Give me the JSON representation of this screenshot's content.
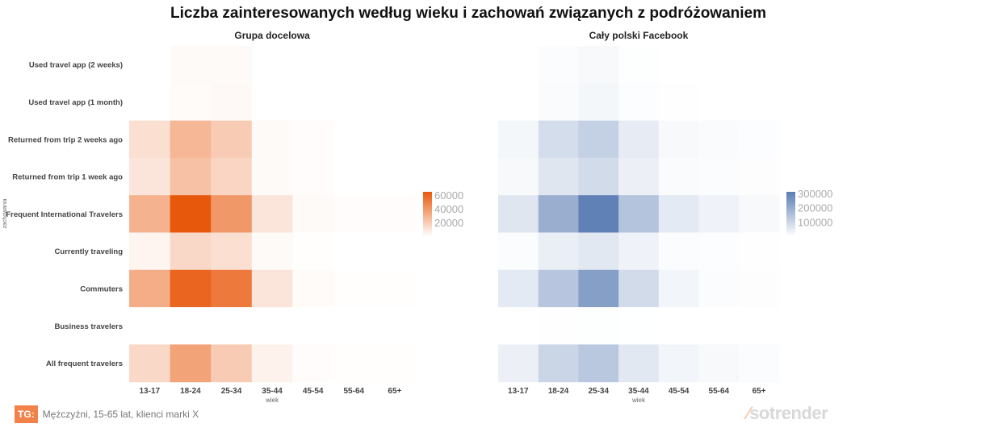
{
  "title": "Liczba zainteresowanych według wieku i zachowań związanych z podróżowaniem",
  "footer": {
    "tag": "TG:",
    "text": "Mężczyźni, 15-65 lat, klienci marki X"
  },
  "logo": "sotrender",
  "chart_data": [
    {
      "type": "heatmap",
      "title": "Grupa docelowa",
      "xlabel": "wiek",
      "ylabel": "zachowania",
      "categories": [
        "13-17",
        "18-24",
        "25-34",
        "35-44",
        "45-54",
        "55-64",
        "65+"
      ],
      "rows": [
        "Used travel app (2 weeks)",
        "Used travel app (1 month)",
        "Returned from trip 2 weeks ago",
        "Returned from trip 1 week ago",
        "Frequent International Travelers",
        "Currently traveling",
        "Commuters",
        "Business travelers",
        "All frequent travelers"
      ],
      "values": [
        [
          0,
          2000,
          2000,
          0,
          0,
          0,
          0
        ],
        [
          0,
          1500,
          2500,
          0,
          0,
          0,
          0
        ],
        [
          12000,
          28000,
          20000,
          2000,
          1000,
          0,
          0
        ],
        [
          10000,
          24000,
          16000,
          2000,
          1000,
          0,
          0
        ],
        [
          30000,
          65000,
          40000,
          10000,
          2000,
          1000,
          1000
        ],
        [
          4000,
          15000,
          12000,
          2000,
          500,
          0,
          0
        ],
        [
          32000,
          60000,
          52000,
          10000,
          1500,
          500,
          500
        ],
        [
          0,
          0,
          0,
          0,
          0,
          0,
          0
        ],
        [
          15000,
          36000,
          20000,
          5000,
          1000,
          500,
          500
        ]
      ],
      "color": "#e8580c",
      "range": [
        0,
        65000
      ],
      "legend_ticks": [
        "60000",
        "40000",
        "20000"
      ],
      "legend_values": [
        60000,
        40000,
        20000
      ]
    },
    {
      "type": "heatmap",
      "title": "Cały polski Facebook",
      "xlabel": "wiek",
      "categories": [
        "13-17",
        "18-24",
        "25-34",
        "35-44",
        "45-54",
        "55-64",
        "65+"
      ],
      "values": [
        [
          0,
          8000,
          15000,
          3000,
          0,
          0,
          0
        ],
        [
          0,
          10000,
          20000,
          5000,
          2000,
          0,
          0
        ],
        [
          20000,
          80000,
          110000,
          45000,
          15000,
          10000,
          5000
        ],
        [
          15000,
          60000,
          85000,
          35000,
          10000,
          8000,
          4000
        ],
        [
          60000,
          190000,
          300000,
          140000,
          50000,
          30000,
          15000
        ],
        [
          8000,
          40000,
          55000,
          30000,
          8000,
          5000,
          2000
        ],
        [
          50000,
          135000,
          230000,
          85000,
          25000,
          8000,
          4000
        ],
        [
          0,
          2000,
          3000,
          1000,
          0,
          0,
          0
        ],
        [
          35000,
          100000,
          130000,
          55000,
          25000,
          15000,
          8000
        ]
      ],
      "color": "#5a7db3",
      "range": [
        0,
        310000
      ],
      "legend_ticks": [
        "300000",
        "200000",
        "100000"
      ],
      "legend_values": [
        300000,
        200000,
        100000
      ]
    }
  ]
}
